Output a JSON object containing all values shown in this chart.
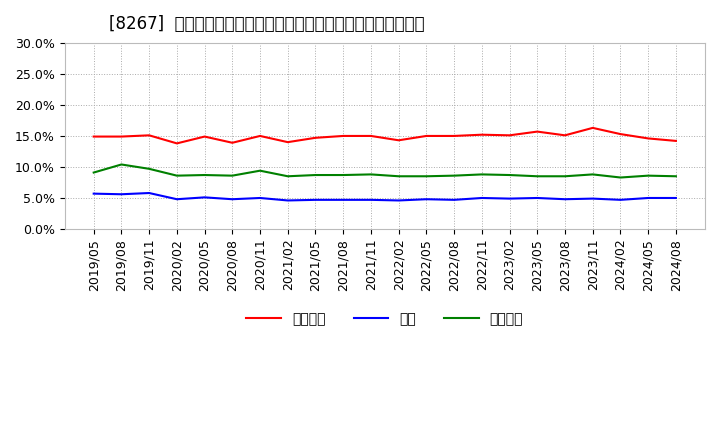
{
  "title": "[8267]  売上債権、在庫、買入債務の総資産に対する比率の推移",
  "xlabel": "",
  "ylabel": "",
  "ylim": [
    0.0,
    0.3
  ],
  "yticks": [
    0.0,
    0.05,
    0.1,
    0.15,
    0.2,
    0.25,
    0.3
  ],
  "ytick_labels": [
    "0.0%",
    "5.0%",
    "10.0%",
    "15.0%",
    "20.0%",
    "25.0%",
    "30.0%"
  ],
  "x_labels": [
    "2019/05",
    "2019/08",
    "2019/11",
    "2020/02",
    "2020/05",
    "2020/08",
    "2020/11",
    "2021/02",
    "2021/05",
    "2021/08",
    "2021/11",
    "2022/02",
    "2022/05",
    "2022/08",
    "2022/11",
    "2023/02",
    "2023/05",
    "2023/08",
    "2023/11",
    "2024/02",
    "2024/05",
    "2024/08"
  ],
  "series": {
    "売上債権": {
      "color": "#ff0000",
      "values": [
        0.149,
        0.149,
        0.151,
        0.138,
        0.149,
        0.139,
        0.15,
        0.14,
        0.147,
        0.15,
        0.15,
        0.143,
        0.15,
        0.15,
        0.152,
        0.151,
        0.157,
        0.151,
        0.163,
        0.153,
        0.146,
        0.142
      ]
    },
    "在庫": {
      "color": "#0000ff",
      "values": [
        0.057,
        0.056,
        0.058,
        0.048,
        0.051,
        0.048,
        0.05,
        0.046,
        0.047,
        0.047,
        0.047,
        0.046,
        0.048,
        0.047,
        0.05,
        0.049,
        0.05,
        0.048,
        0.049,
        0.047,
        0.05,
        0.05
      ]
    },
    "買入債務": {
      "color": "#008000",
      "values": [
        0.091,
        0.104,
        0.097,
        0.086,
        0.087,
        0.086,
        0.094,
        0.085,
        0.087,
        0.087,
        0.088,
        0.085,
        0.085,
        0.086,
        0.088,
        0.087,
        0.085,
        0.085,
        0.088,
        0.083,
        0.086,
        0.085
      ]
    }
  },
  "legend_labels": [
    "売上債権",
    "在庫",
    "買入債務"
  ],
  "legend_colors": [
    "#ff0000",
    "#0000ff",
    "#008000"
  ],
  "background_color": "#ffffff",
  "grid_color": "#aaaaaa",
  "title_fontsize": 12,
  "tick_fontsize": 9,
  "legend_fontsize": 10
}
